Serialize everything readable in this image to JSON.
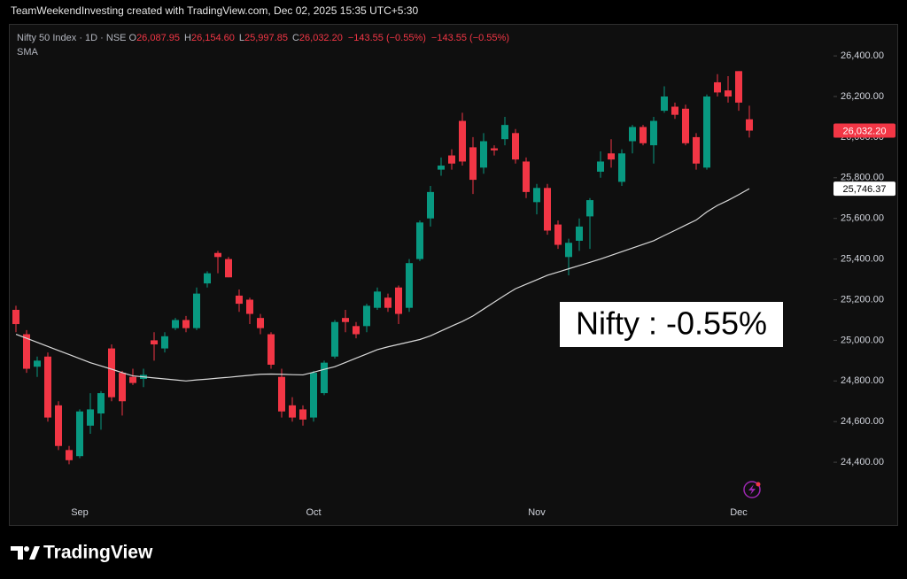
{
  "header": {
    "credit": "TeamWeekendInvesting created with TradingView.com, Dec 02, 2025 15:35 UTC+5:30"
  },
  "chart_data": {
    "type": "candlestick",
    "symbol": "Nifty 50 Index · 1D · NSE",
    "ohlc_legend": [
      {
        "key": "O",
        "text": "26,087.95"
      },
      {
        "key": "H",
        "text": "26,154.60"
      },
      {
        "key": "L",
        "text": "25,997.85"
      },
      {
        "key": "C",
        "text": "26,032.20"
      }
    ],
    "change_labels": [
      "−143.55 (−0.55%)",
      "−143.55 (−0.55%)"
    ],
    "categories": [
      null,
      null,
      null,
      null,
      null,
      null,
      "Sep",
      null,
      null,
      null,
      null,
      null,
      null,
      null,
      null,
      null,
      null,
      null,
      null,
      null,
      null,
      null,
      null,
      null,
      null,
      null,
      null,
      null,
      "Oct",
      null,
      null,
      null,
      null,
      null,
      null,
      null,
      null,
      null,
      null,
      null,
      null,
      null,
      null,
      null,
      null,
      null,
      null,
      null,
      null,
      "Nov",
      null,
      null,
      null,
      null,
      null,
      null,
      null,
      null,
      null,
      null,
      null,
      null,
      null,
      null,
      null,
      null,
      null,
      null,
      "Dec",
      null
    ],
    "open": [
      25150,
      25030,
      24870,
      24920,
      24680,
      24460,
      24430,
      24580,
      24640,
      24960,
      24840,
      24820,
      24810,
      25000,
      24960,
      25060,
      25100,
      25060,
      25280,
      25430,
      25400,
      25220,
      25200,
      25110,
      25030,
      24820,
      24680,
      24660,
      24620,
      24740,
      24920,
      25110,
      25070,
      25070,
      25160,
      25210,
      25260,
      25160,
      25400,
      25600,
      25840,
      25910,
      26080,
      25950,
      25850,
      25945,
      25990,
      26020,
      25880,
      25680,
      25750,
      25570,
      25410,
      25490,
      25610,
      25830,
      25920,
      25780,
      25980,
      26050,
      25960,
      26130,
      26150,
      26140,
      26000,
      25850,
      26270,
      26230,
      26325,
      26087.95
    ],
    "high": [
      25170,
      25050,
      24920,
      24940,
      24700,
      24480,
      24660,
      24740,
      24750,
      24980,
      24850,
      24860,
      24860,
      25040,
      25040,
      25110,
      25120,
      25260,
      25340,
      25440,
      25410,
      25250,
      25210,
      25130,
      25040,
      24860,
      24720,
      24680,
      24850,
      24900,
      25100,
      25150,
      25090,
      25180,
      25260,
      25230,
      25270,
      25400,
      25590,
      25760,
      25900,
      25940,
      26120,
      26000,
      26020,
      25960,
      26100,
      26040,
      25900,
      25770,
      25770,
      25590,
      25500,
      25600,
      25700,
      25930,
      25990,
      25940,
      26060,
      26060,
      26100,
      26250,
      26170,
      26160,
      26020,
      26210,
      26310,
      26300,
      26325,
      26154.6
    ],
    "low": [
      25040,
      24840,
      24820,
      24600,
      24460,
      24390,
      24420,
      24540,
      24560,
      24700,
      24630,
      24780,
      24770,
      24900,
      24940,
      25050,
      25040,
      25050,
      25260,
      25330,
      25310,
      25140,
      25080,
      25030,
      24860,
      24620,
      24600,
      24580,
      24600,
      24730,
      24910,
      25040,
      25010,
      25040,
      25150,
      25140,
      25080,
      25140,
      25390,
      25560,
      25810,
      25840,
      25860,
      25720,
      25820,
      25910,
      25960,
      25870,
      25700,
      25620,
      25520,
      25450,
      25320,
      25440,
      25450,
      25800,
      25850,
      25760,
      25920,
      25960,
      25870,
      26120,
      26090,
      25960,
      25840,
      25840,
      26200,
      26170,
      26130,
      25997.85
    ],
    "close": [
      25080,
      24860,
      24900,
      24620,
      24480,
      24410,
      24650,
      24660,
      24740,
      24720,
      24700,
      24790,
      24830,
      24980,
      25020,
      25100,
      25060,
      25230,
      25330,
      25410,
      25310,
      25180,
      25130,
      25060,
      24880,
      24650,
      24620,
      24610,
      24840,
      24890,
      25090,
      25090,
      25030,
      25170,
      25240,
      25160,
      25130,
      25380,
      25580,
      25730,
      25860,
      25870,
      25880,
      25790,
      25980,
      25935,
      26060,
      25890,
      25730,
      25750,
      25540,
      25470,
      25480,
      25560,
      25690,
      25880,
      25890,
      25920,
      26050,
      25970,
      26080,
      26200,
      26110,
      25970,
      25870,
      26200,
      26220,
      26200,
      26170,
      26032.2
    ],
    "up_color": "#089981",
    "down_color": "#f23645",
    "sma": {
      "name": "SMA",
      "color": "#d9d9d9",
      "values": [
        25030,
        25010,
        24990,
        24970,
        24950,
        24930,
        24910,
        24890,
        24874,
        24858,
        24841,
        24825,
        24820,
        24815,
        24810,
        24805,
        24800,
        24805,
        24809,
        24814,
        24818,
        24823,
        24828,
        24833,
        24834,
        24833,
        24831,
        24830,
        24843,
        24857,
        24870,
        24891,
        24912,
        24933,
        24954,
        24968,
        24980,
        24992,
        25004,
        25022,
        25046,
        25070,
        25093,
        25120,
        25154,
        25188,
        25222,
        25254,
        25276,
        25298,
        25320,
        25336,
        25352,
        25368,
        25384,
        25400,
        25418,
        25436,
        25454,
        25472,
        25490,
        25516,
        25541,
        25567,
        25592,
        25632,
        25664,
        25689,
        25717,
        25746.37
      ]
    },
    "last_price_label": "26,032.20",
    "sma_last_label": "25,746.37",
    "ylim": [
      24200,
      26553
    ],
    "yticks": [
      {
        "value": 24400,
        "label": "24,400.00"
      },
      {
        "value": 24600,
        "label": "24,600.00"
      },
      {
        "value": 24800,
        "label": "24,800.00"
      },
      {
        "value": 25000,
        "label": "25,000.00"
      },
      {
        "value": 25200,
        "label": "25,200.00"
      },
      {
        "value": 25400,
        "label": "25,400.00"
      },
      {
        "value": 25600,
        "label": "25,600.00"
      },
      {
        "value": 25800,
        "label": "25,800.00"
      },
      {
        "value": 26000,
        "label": "26,000.00"
      },
      {
        "value": 26200,
        "label": "26,200.00"
      },
      {
        "value": 26400,
        "label": "26,400.00"
      }
    ],
    "annotation": "Nifty : -0.55%"
  },
  "footer": {
    "brand": "TradingView"
  }
}
